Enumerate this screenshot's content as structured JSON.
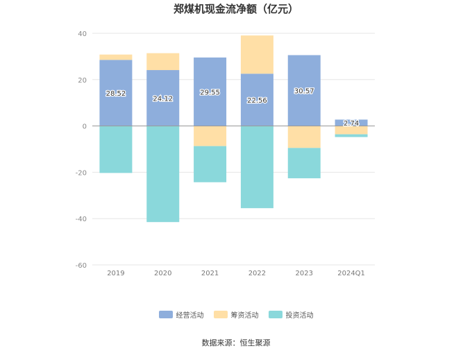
{
  "chart_data": {
    "type": "bar",
    "stacked": true,
    "title": "郑煤机现金流净额（亿元）",
    "categories": [
      "2019",
      "2020",
      "2021",
      "2022",
      "2023",
      "2024Q1"
    ],
    "ylim": [
      -60,
      40
    ],
    "yticks": [
      40,
      20,
      0,
      -20,
      -40,
      -60
    ],
    "grid": true,
    "legend_position": "bottom",
    "series": [
      {
        "name": "经营活动",
        "color": "#8eaedc",
        "values": [
          28.52,
          24.12,
          29.55,
          22.56,
          30.57,
          2.74
        ]
      },
      {
        "name": "筹资活动",
        "color": "#ffdfa6",
        "values": [
          2.3,
          7.3,
          -8.7,
          16.5,
          -9.5,
          -3.6
        ]
      },
      {
        "name": "投资活动",
        "color": "#8ad8db",
        "values": [
          -20.3,
          -41.5,
          -15.6,
          -35.5,
          -13.1,
          -1.2
        ]
      }
    ],
    "data_labels": [
      "28.52",
      "24.12",
      "29.55",
      "22.56",
      "30.57",
      "2.74"
    ]
  },
  "source": "数据来源：恒生聚源"
}
